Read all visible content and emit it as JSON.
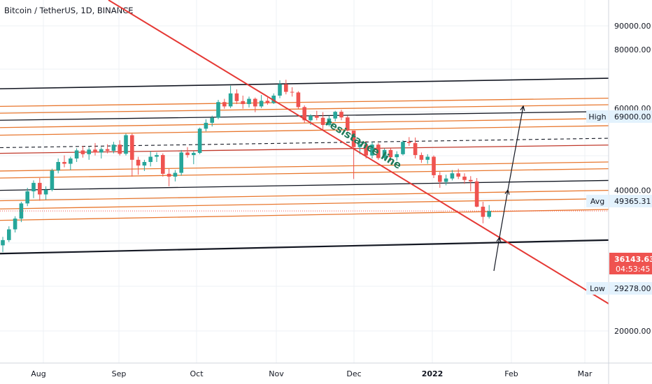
{
  "chart_data": {
    "type": "candlestick",
    "title": "Bitcoin / TetherUS, 1D, BINANCE",
    "y_ticks": [
      20000,
      40000,
      60000,
      80000,
      90000
    ],
    "y_tick_labels": [
      "20000.00",
      "40000.00",
      "60000.00",
      "80000.00",
      "90000.00"
    ],
    "x_ticks": [
      "Aug",
      "Sep",
      "Oct",
      "Nov",
      "Dec",
      "2022",
      "Feb",
      "Mar"
    ],
    "ohlc_approx": [
      [
        30500,
        31800,
        29500,
        31300
      ],
      [
        31300,
        33500,
        31000,
        33000
      ],
      [
        33000,
        35200,
        32500,
        34800
      ],
      [
        34800,
        37800,
        34200,
        37500
      ],
      [
        37500,
        40500,
        37000,
        39800
      ],
      [
        39800,
        42000,
        38500,
        41500
      ],
      [
        41500,
        42500,
        38000,
        39200
      ],
      [
        39200,
        40800,
        38200,
        40100
      ],
      [
        40100,
        44500,
        39800,
        44100
      ],
      [
        44100,
        46800,
        43500,
        46000
      ],
      [
        46000,
        47500,
        44800,
        45600
      ],
      [
        45600,
        47200,
        44200,
        46800
      ],
      [
        46800,
        49200,
        46000,
        48700
      ],
      [
        48700,
        49800,
        47000,
        47800
      ],
      [
        47800,
        49500,
        46500,
        48900
      ],
      [
        48900,
        50500,
        47500,
        48200
      ],
      [
        48200,
        49500,
        46800,
        49000
      ],
      [
        49000,
        50200,
        48000,
        48600
      ],
      [
        48600,
        50800,
        48000,
        50100
      ],
      [
        50100,
        51200,
        47500,
        47900
      ],
      [
        47900,
        52900,
        47500,
        52500
      ],
      [
        52500,
        52900,
        42800,
        46500
      ],
      [
        46500,
        47200,
        43200,
        45200
      ],
      [
        45200,
        46500,
        44000,
        46000
      ],
      [
        46000,
        48500,
        45000,
        47200
      ],
      [
        47200,
        48200,
        46000,
        47600
      ],
      [
        47600,
        48000,
        42800,
        43400
      ],
      [
        43400,
        44500,
        40800,
        42800
      ],
      [
        42800,
        44200,
        41800,
        43600
      ],
      [
        43600,
        48800,
        43000,
        48200
      ],
      [
        48200,
        49500,
        47000,
        47600
      ],
      [
        47600,
        48500,
        45500,
        48100
      ],
      [
        48100,
        54500,
        47800,
        54200
      ],
      [
        54200,
        56800,
        53500,
        55800
      ],
      [
        55800,
        57800,
        54800,
        57200
      ],
      [
        57200,
        62500,
        56800,
        61800
      ],
      [
        61800,
        62800,
        59800,
        60500
      ],
      [
        60500,
        67000,
        60000,
        64500
      ],
      [
        64500,
        65800,
        61200,
        62100
      ],
      [
        62100,
        63800,
        59800,
        61200
      ],
      [
        61200,
        63500,
        60200,
        62800
      ],
      [
        62800,
        63200,
        58800,
        60500
      ],
      [
        60500,
        64000,
        60000,
        62200
      ],
      [
        62200,
        63200,
        61000,
        61500
      ],
      [
        61500,
        64500,
        61200,
        63800
      ],
      [
        63800,
        68800,
        63000,
        67500
      ],
      [
        67500,
        69000,
        64200,
        65000
      ],
      [
        65000,
        66500,
        63500,
        64800
      ],
      [
        64800,
        65200,
        59800,
        60300
      ],
      [
        60300,
        60800,
        55800,
        56500
      ],
      [
        56500,
        58200,
        55200,
        57800
      ],
      [
        57800,
        59200,
        56500,
        57200
      ],
      [
        57200,
        58800,
        53800,
        55200
      ],
      [
        55200,
        57800,
        54800,
        57000
      ],
      [
        57000,
        59200,
        56200,
        58900
      ],
      [
        58900,
        59500,
        56500,
        57300
      ],
      [
        57300,
        57800,
        53500,
        53700
      ],
      [
        53700,
        52900,
        42300,
        49500
      ],
      [
        49500,
        51200,
        47800,
        50200
      ],
      [
        50200,
        51000,
        46800,
        47500
      ],
      [
        47500,
        50800,
        46800,
        50100
      ],
      [
        50100,
        50500,
        46500,
        46900
      ],
      [
        46900,
        49200,
        46500,
        48800
      ],
      [
        48800,
        49200,
        46200,
        47100
      ],
      [
        47100,
        48500,
        46300,
        47800
      ],
      [
        47800,
        51200,
        47500,
        50800
      ],
      [
        50800,
        52000,
        49800,
        50500
      ],
      [
        50500,
        51900,
        46800,
        47600
      ],
      [
        47600,
        48200,
        45800,
        46500
      ],
      [
        46500,
        47800,
        45600,
        47200
      ],
      [
        47200,
        47500,
        42500,
        43100
      ],
      [
        43100,
        43800,
        40500,
        41700
      ],
      [
        41700,
        43200,
        41000,
        42400
      ],
      [
        42400,
        44200,
        42000,
        43500
      ],
      [
        43500,
        44500,
        42300,
        42800
      ],
      [
        42800,
        43500,
        41300,
        42100
      ],
      [
        42100,
        42900,
        39800,
        41800
      ],
      [
        41800,
        42500,
        36800,
        36900
      ],
      [
        36900,
        37800,
        34000,
        35100
      ],
      [
        35100,
        37200,
        34800,
        36143.63
      ]
    ],
    "channel_lines": [
      {
        "y_start": 29278,
        "y_end": 31300,
        "color": "#131722",
        "width": 2.2
      },
      {
        "y_start": 34500,
        "y_end": 36400,
        "color": "#e8772e",
        "width": 1.3
      },
      {
        "y_start": 36500,
        "y_end": 38400,
        "color": "#e8772e",
        "width": 1.3
      },
      {
        "y_start": 38000,
        "y_end": 40000,
        "color": "#e8772e",
        "width": 1.3
      },
      {
        "y_start": 40000,
        "y_end": 42000,
        "color": "#131722",
        "width": 1.3
      },
      {
        "y_start": 42500,
        "y_end": 44500,
        "color": "#e8772e",
        "width": 1.3
      },
      {
        "y_start": 44000,
        "y_end": 46000,
        "color": "#e8772e",
        "width": 1.3
      },
      {
        "y_start": 48000,
        "y_end": 50000,
        "color": "#c0392b",
        "width": 1.3
      },
      {
        "y_start": 49365.31,
        "y_end": 51700,
        "color": "#131722",
        "width": 1.1,
        "dashed": true
      },
      {
        "y_start": 52500,
        "y_end": 55000,
        "color": "#e8772e",
        "width": 1.3
      },
      {
        "y_start": 54500,
        "y_end": 57000,
        "color": "#e8772e",
        "width": 1.3
      },
      {
        "y_start": 56500,
        "y_end": 59000,
        "color": "#131722",
        "width": 1.3
      },
      {
        "y_start": 58500,
        "y_end": 61000,
        "color": "#e8772e",
        "width": 1.3
      },
      {
        "y_start": 60500,
        "y_end": 63000,
        "color": "#e8772e",
        "width": 1.3
      },
      {
        "y_start": 66000,
        "y_end": 69500,
        "color": "#131722",
        "width": 1.6
      }
    ],
    "resistance_line": {
      "label": "resistance line",
      "color": "#e53935"
    },
    "price_labels": [
      {
        "name": "High",
        "value": "69000.00"
      },
      {
        "name": "Avg",
        "value": "49365.31"
      },
      {
        "name": "",
        "value": "36143.63"
      },
      {
        "name": "",
        "value": "04:53:45"
      },
      {
        "name": "Low",
        "value": "29278.00"
      }
    ],
    "colors": {
      "up": "#26a69a",
      "down": "#ef5350",
      "orange": "#e8772e",
      "red": "#e53935",
      "black": "#131722",
      "tag_bg": "#e3f2fd"
    },
    "ylim": [
      13000,
      96000
    ]
  }
}
